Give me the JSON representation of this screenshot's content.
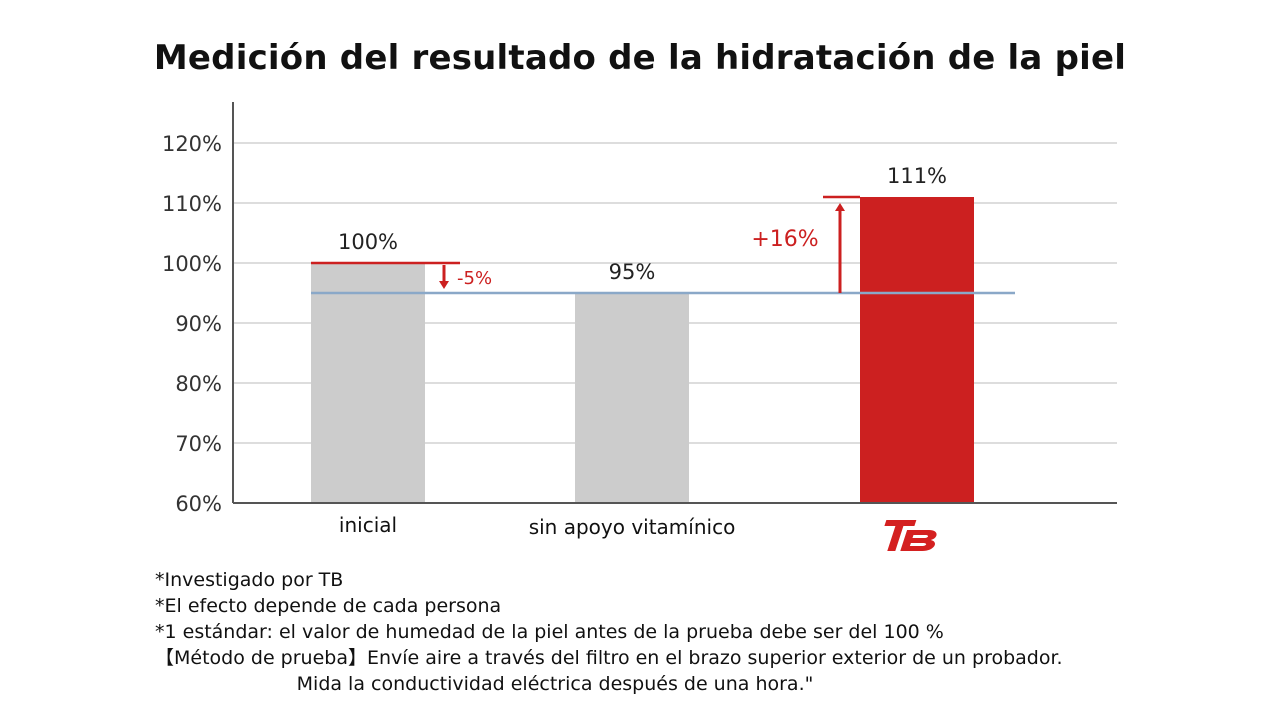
{
  "title": "Medición del resultado de la hidratación de la piel",
  "colors": {
    "gray_bar": "#cccccc",
    "red_bar": "#cc2020",
    "reference_line": "#8aa8c8",
    "axis": "#555555",
    "grid": "#dddddd",
    "annotation": "#cc2020",
    "text": "#111111"
  },
  "chart_data": {
    "type": "bar",
    "categories": [
      "inicial",
      "sin apoyo vitamínico",
      ""
    ],
    "category_logo": [
      null,
      null,
      "TB"
    ],
    "values": [
      100,
      95,
      111
    ],
    "value_labels": [
      "100%",
      "95%",
      "111%"
    ],
    "bar_colors": [
      "#cccccc",
      "#cccccc",
      "#cc2020"
    ],
    "ylim": [
      60,
      120
    ],
    "yticks": [
      60,
      70,
      80,
      90,
      100,
      110,
      120
    ],
    "ytick_labels": [
      "60%",
      "70%",
      "80%",
      "90%",
      "100%",
      "110%",
      "120%"
    ],
    "grid": true,
    "reference_line": 95,
    "annotations": [
      {
        "text": "-5%",
        "from": 100,
        "to": 95
      },
      {
        "text": "+16%",
        "from": 95,
        "to": 111
      }
    ]
  },
  "notes": [
    "*Investigado por TB",
    "*El efecto depende de cada persona",
    "*1 estándar: el valor de humedad de la piel antes de la prueba debe ser del 100 %",
    "【Método de prueba】Envíe aire a través del filtro en el brazo superior exterior de un probador.",
    "Mida la conductividad eléctrica después de una hora.\""
  ]
}
